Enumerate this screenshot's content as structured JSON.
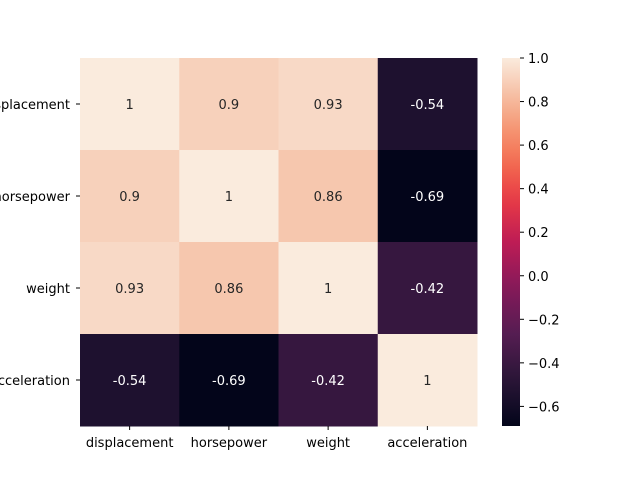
{
  "chart_data": {
    "type": "heatmap",
    "title": "",
    "xlabel": "",
    "ylabel": "",
    "x_categories": [
      "displacement",
      "horsepower",
      "weight",
      "acceleration"
    ],
    "y_categories": [
      "displacement",
      "horsepower",
      "weight",
      "acceleration"
    ],
    "values": [
      [
        1.0,
        0.9,
        0.93,
        -0.54
      ],
      [
        0.9,
        1.0,
        0.86,
        -0.69
      ],
      [
        0.93,
        0.86,
        1.0,
        -0.42
      ],
      [
        -0.54,
        -0.69,
        -0.42,
        1.0
      ]
    ],
    "cell_labels": [
      [
        "1",
        "0.9",
        "0.93",
        "-0.54"
      ],
      [
        "0.9",
        "1",
        "0.86",
        "-0.69"
      ],
      [
        "0.93",
        "0.86",
        "1",
        "-0.42"
      ],
      [
        "-0.54",
        "-0.69",
        "-0.42",
        "1"
      ]
    ],
    "colormap": "rocket",
    "vmin": -0.69,
    "vmax": 1.0,
    "colorbar": {
      "ticks": [
        1.0,
        0.8,
        0.6,
        0.4,
        0.2,
        0.0,
        -0.2,
        -0.4,
        -0.6
      ],
      "tick_labels": [
        "1.0",
        "0.8",
        "0.6",
        "0.4",
        "0.2",
        "0.0",
        "−0.2",
        "−0.4",
        "−0.6"
      ]
    },
    "grid": false,
    "colorbar_position": "right"
  }
}
